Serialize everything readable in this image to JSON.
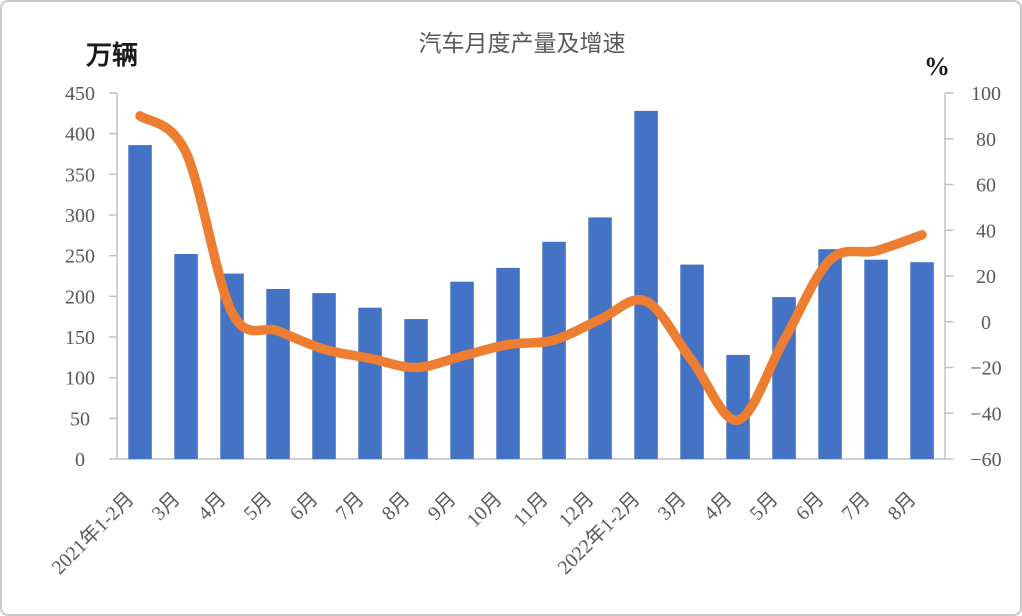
{
  "window": {
    "background": "#ffffff",
    "border_color": "#c9c9c9"
  },
  "chart_data": {
    "type": "combo",
    "title": "汽车月度产量及增速",
    "categories": [
      "2021年1-2月",
      "3月",
      "4月",
      "5月",
      "6月",
      "7月",
      "8月",
      "9月",
      "10月",
      "11月",
      "12月",
      "2022年1-2月",
      "3月",
      "4月",
      "5月",
      "6月",
      "7月",
      "8月"
    ],
    "series": [
      {
        "name": "产量",
        "type": "bar",
        "axis": "left",
        "unit": "万辆",
        "color": "#4472C4",
        "values": [
          386,
          252,
          228,
          209,
          204,
          186,
          172,
          218,
          235,
          267,
          297,
          428,
          239,
          128,
          199,
          258,
          245,
          242
        ]
      },
      {
        "name": "增速",
        "type": "line",
        "smooth": true,
        "axis": "right",
        "unit": "%",
        "color": "#ED7D31",
        "values": [
          90,
          74,
          4,
          -4,
          -12,
          -16,
          -20,
          -15,
          -10,
          -8,
          1,
          9,
          -17,
          -43,
          -8,
          27,
          31,
          38
        ]
      }
    ],
    "left_axis": {
      "label": "万辆",
      "min": 0,
      "max": 450,
      "step": 50,
      "tick_labels": [
        "0",
        "50",
        "100",
        "150",
        "200",
        "250",
        "300",
        "350",
        "400",
        "450"
      ]
    },
    "right_axis": {
      "label": "%",
      "min": -60,
      "max": 100,
      "step": 20,
      "tick_labels": [
        "−60",
        "−40",
        "−20",
        "0",
        "20",
        "40",
        "60",
        "80",
        "100"
      ]
    },
    "grid": false,
    "legend": "none",
    "axis_color": "#BFBFBF",
    "tick_text_color": "#595959",
    "title_color": "#595959"
  }
}
